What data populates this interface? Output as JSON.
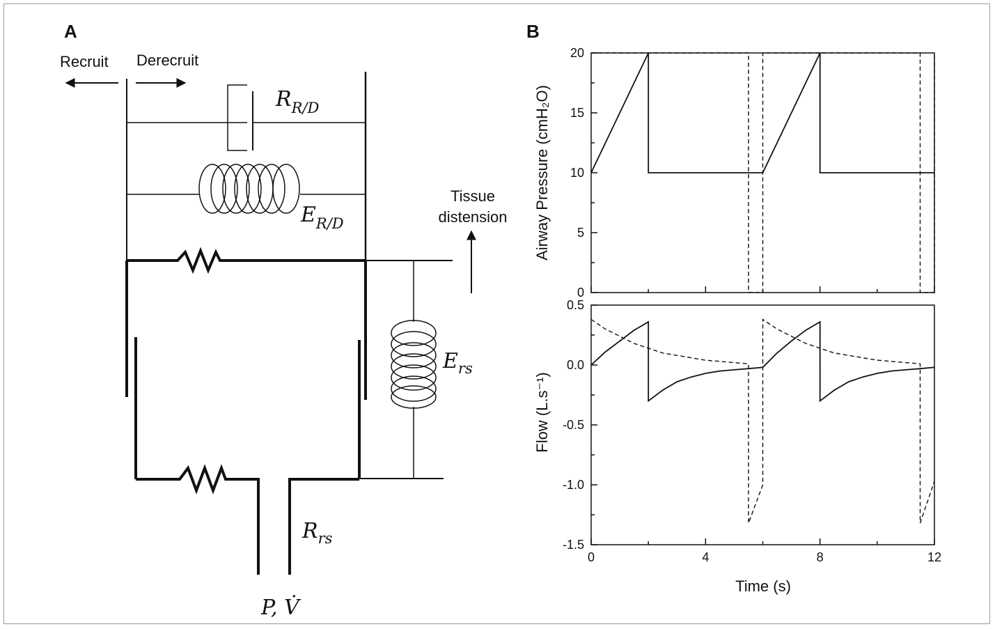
{
  "panel_a": {
    "label": "A",
    "recruit": "Recruit",
    "derecruit": "Derecruit",
    "tissue_line1": "Tissue",
    "tissue_line2": "distension",
    "r_rd": {
      "main": "R",
      "sub": "R/D"
    },
    "e_rd": {
      "main": "E",
      "sub": "R/D"
    },
    "e_rs": {
      "main": "E",
      "sub": "rs"
    },
    "r_rs": {
      "main": "R",
      "sub": "rs"
    },
    "p_v": "P, V̇"
  },
  "panel_b": {
    "label": "B",
    "pressure_axis_title": "Airway Pressure (cmH₂O)",
    "flow_axis_title": "Flow (L.s⁻¹)",
    "time_axis_title": "Time (s)"
  },
  "chart_data": [
    {
      "type": "line",
      "ylabel": "Airway Pressure (cmH₂O)",
      "xlim": [
        0,
        12
      ],
      "ylim": [
        0,
        20
      ],
      "x_ticks": [
        "0",
        "4",
        "8",
        "12"
      ],
      "y_ticks": [
        "0",
        "5",
        "10",
        "15",
        "20"
      ],
      "series": [
        {
          "style": "solid",
          "points": [
            [
              0,
              10
            ],
            [
              2,
              20
            ],
            [
              2,
              10
            ],
            [
              6,
              10
            ],
            [
              8,
              20
            ],
            [
              8,
              10
            ],
            [
              12,
              10
            ]
          ]
        },
        {
          "style": "dashed",
          "points": [
            [
              0,
              20
            ],
            [
              5.5,
              20
            ],
            [
              5.5,
              0
            ],
            [
              6,
              0
            ],
            [
              6,
              20
            ],
            [
              11.5,
              20
            ],
            [
              11.5,
              0
            ],
            [
              12,
              0
            ],
            [
              12,
              20
            ]
          ]
        }
      ]
    },
    {
      "type": "line",
      "xlabel": "Time (s)",
      "ylabel": "Flow (L.s⁻¹)",
      "xlim": [
        0,
        12
      ],
      "ylim": [
        -1.5,
        0.5
      ],
      "x_ticks": [
        "0",
        "4",
        "8",
        "12"
      ],
      "y_ticks": [
        "-1.5",
        "-1.0",
        "-0.5",
        "0.0",
        "0.5"
      ],
      "series": [
        {
          "style": "solid",
          "points": [
            [
              0,
              0
            ],
            [
              0.5,
              0.11
            ],
            [
              1,
              0.2
            ],
            [
              1.5,
              0.29
            ],
            [
              2,
              0.36
            ],
            [
              2,
              -0.3
            ],
            [
              2.5,
              -0.21
            ],
            [
              3,
              -0.14
            ],
            [
              3.5,
              -0.1
            ],
            [
              4,
              -0.07
            ],
            [
              4.5,
              -0.05
            ],
            [
              5,
              -0.04
            ],
            [
              5.5,
              -0.03
            ],
            [
              6,
              -0.02
            ],
            [
              6.5,
              0.1
            ],
            [
              7,
              0.2
            ],
            [
              7.5,
              0.29
            ],
            [
              8,
              0.36
            ],
            [
              8,
              -0.3
            ],
            [
              8.5,
              -0.21
            ],
            [
              9,
              -0.14
            ],
            [
              9.5,
              -0.1
            ],
            [
              10,
              -0.07
            ],
            [
              10.5,
              -0.05
            ],
            [
              11,
              -0.04
            ],
            [
              11.5,
              -0.03
            ],
            [
              12,
              -0.02
            ]
          ]
        },
        {
          "style": "dashed",
          "points": [
            [
              0,
              0.38
            ],
            [
              0.5,
              0.3
            ],
            [
              1,
              0.24
            ],
            [
              1.5,
              0.18
            ],
            [
              2,
              0.14
            ],
            [
              2.5,
              0.1
            ],
            [
              3,
              0.08
            ],
            [
              3.5,
              0.06
            ],
            [
              4,
              0.04
            ],
            [
              4.5,
              0.03
            ],
            [
              5,
              0.02
            ],
            [
              5.5,
              0.01
            ],
            [
              5.5,
              -1.32
            ],
            [
              6,
              -1.0
            ],
            [
              6,
              0.38
            ],
            [
              6.5,
              0.3
            ],
            [
              7,
              0.24
            ],
            [
              7.5,
              0.18
            ],
            [
              8,
              0.14
            ],
            [
              8.5,
              0.1
            ],
            [
              9,
              0.08
            ],
            [
              9.5,
              0.06
            ],
            [
              10,
              0.04
            ],
            [
              10.5,
              0.03
            ],
            [
              11,
              0.02
            ],
            [
              11.5,
              0.01
            ],
            [
              11.5,
              -1.32
            ],
            [
              12,
              -0.97
            ]
          ]
        }
      ]
    }
  ]
}
